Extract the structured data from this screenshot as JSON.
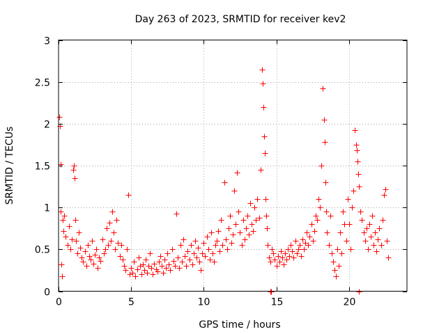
{
  "chart_data": {
    "type": "scatter",
    "title": "Day 263 of 2023, SRMTID for receiver kev2",
    "xlabel": "GPS time / hours",
    "ylabel": "SRMTID / TECUs",
    "xlim": [
      0,
      24
    ],
    "ylim": [
      0,
      3
    ],
    "grid": true,
    "marker": "+",
    "color": "#ff0000",
    "xticks": [
      0,
      5,
      10,
      15,
      20
    ],
    "xtick_labels": [
      "0",
      "5",
      "10",
      "15",
      "20"
    ],
    "yticks": [
      0,
      0.5,
      1,
      1.5,
      2,
      2.5,
      3
    ],
    "ytick_labels": [
      "0",
      "0.5",
      "1",
      "1.5",
      "2",
      "2.5",
      "3"
    ],
    "series": [
      {
        "name": "SRMTID",
        "x": [
          0.05,
          0.1,
          0.12,
          0.15,
          0.2,
          0.25,
          0.3,
          0.35,
          0.4,
          0.5,
          0.6,
          0.7,
          0.8,
          0.9,
          1.0,
          1.05,
          1.1,
          1.15,
          1.2,
          1.3,
          1.4,
          1.5,
          1.6,
          1.7,
          1.8,
          1.9,
          2.0,
          2.1,
          2.2,
          2.3,
          2.4,
          2.5,
          2.6,
          2.7,
          2.8,
          2.9,
          3.0,
          3.1,
          3.2,
          3.3,
          3.4,
          3.5,
          3.6,
          3.7,
          3.8,
          3.9,
          4.0,
          4.1,
          4.2,
          4.3,
          4.4,
          4.5,
          4.6,
          4.7,
          4.8,
          4.9,
          5.0,
          5.1,
          5.2,
          5.3,
          5.4,
          5.5,
          5.6,
          5.7,
          5.8,
          5.9,
          6.0,
          6.1,
          6.2,
          6.3,
          6.4,
          6.5,
          6.6,
          6.7,
          6.8,
          6.9,
          7.0,
          7.1,
          7.2,
          7.3,
          7.4,
          7.5,
          7.6,
          7.7,
          7.8,
          7.9,
          8.0,
          8.1,
          8.2,
          8.3,
          8.4,
          8.5,
          8.6,
          8.7,
          8.8,
          8.9,
          9.0,
          9.1,
          9.2,
          9.3,
          9.4,
          9.5,
          9.6,
          9.7,
          9.8,
          9.9,
          10.0,
          10.1,
          10.2,
          10.3,
          10.4,
          10.5,
          10.6,
          10.7,
          10.8,
          10.9,
          11.0,
          11.1,
          11.2,
          11.3,
          11.4,
          11.5,
          11.6,
          11.7,
          11.8,
          11.9,
          12.0,
          12.1,
          12.2,
          12.3,
          12.4,
          12.5,
          12.6,
          12.7,
          12.8,
          12.9,
          13.0,
          13.1,
          13.2,
          13.3,
          13.4,
          13.5,
          13.6,
          13.7,
          13.8,
          13.9,
          14.0,
          14.05,
          14.1,
          14.15,
          14.2,
          14.25,
          14.3,
          14.35,
          14.4,
          14.5,
          14.6,
          14.7,
          14.8,
          14.9,
          15.0,
          15.1,
          15.2,
          15.3,
          15.4,
          15.5,
          15.6,
          15.7,
          15.8,
          15.9,
          16.0,
          16.1,
          16.2,
          16.3,
          16.4,
          16.5,
          16.6,
          16.7,
          16.8,
          16.9,
          17.0,
          17.1,
          17.2,
          17.3,
          17.4,
          17.5,
          17.6,
          17.7,
          17.8,
          17.9,
          18.0,
          18.1,
          18.2,
          18.3,
          18.35,
          18.4,
          18.45,
          18.5,
          18.6,
          18.7,
          18.8,
          18.9,
          19.0,
          19.1,
          19.2,
          19.3,
          19.4,
          19.5,
          19.6,
          19.7,
          19.8,
          19.9,
          20.0,
          20.1,
          20.2,
          20.3,
          20.4,
          20.5,
          20.55,
          20.6,
          20.65,
          20.7,
          20.8,
          20.9,
          21.0,
          21.1,
          21.2,
          21.3,
          21.4,
          21.5,
          21.6,
          21.7,
          21.8,
          21.9,
          22.0,
          22.1,
          22.2,
          22.3,
          22.4,
          22.5,
          22.6,
          22.7
        ],
        "y": [
          2.08,
          1.97,
          1.52,
          0.95,
          0.32,
          0.18,
          0.85,
          0.72,
          0.9,
          0.65,
          0.55,
          0.78,
          0.5,
          0.62,
          1.45,
          1.5,
          1.35,
          0.85,
          0.6,
          0.45,
          0.7,
          0.52,
          0.4,
          0.35,
          0.48,
          0.3,
          0.55,
          0.42,
          0.38,
          0.6,
          0.33,
          0.44,
          0.5,
          0.28,
          0.4,
          0.36,
          0.62,
          0.45,
          0.5,
          0.75,
          0.55,
          0.82,
          0.6,
          0.95,
          0.7,
          0.5,
          0.85,
          0.58,
          0.42,
          0.55,
          0.38,
          0.3,
          0.25,
          0.5,
          1.15,
          0.2,
          0.28,
          0.22,
          0.35,
          0.18,
          0.26,
          0.4,
          0.3,
          0.2,
          0.32,
          0.25,
          0.38,
          0.22,
          0.3,
          0.45,
          0.28,
          0.2,
          0.33,
          0.26,
          0.24,
          0.35,
          0.42,
          0.3,
          0.22,
          0.38,
          0.28,
          0.45,
          0.32,
          0.25,
          0.5,
          0.36,
          0.3,
          0.93,
          0.4,
          0.28,
          0.55,
          0.35,
          0.62,
          0.42,
          0.3,
          0.48,
          0.38,
          0.55,
          0.32,
          0.45,
          0.6,
          0.4,
          0.52,
          0.35,
          0.25,
          0.45,
          0.58,
          0.42,
          0.65,
          0.5,
          0.38,
          0.7,
          0.45,
          0.35,
          0.55,
          0.6,
          0.72,
          0.48,
          0.85,
          0.55,
          1.3,
          0.62,
          0.5,
          0.75,
          0.9,
          0.58,
          0.68,
          1.2,
          0.8,
          1.42,
          0.95,
          0.7,
          0.55,
          0.85,
          0.62,
          0.75,
          0.9,
          0.68,
          1.05,
          0.8,
          0.72,
          1.0,
          0.85,
          1.1,
          0.88,
          1.45,
          2.65,
          2.48,
          2.2,
          1.85,
          1.65,
          1.1,
          0.9,
          0.75,
          0.55,
          0.4,
          0.35,
          0.5,
          0.45,
          0.38,
          0.3,
          0.42,
          0.35,
          0.48,
          0.4,
          0.32,
          0.45,
          0.38,
          0.5,
          0.42,
          0.55,
          0.48,
          0.4,
          0.6,
          0.45,
          0.5,
          0.55,
          0.42,
          0.62,
          0.5,
          0.58,
          0.7,
          0.55,
          0.65,
          0.8,
          0.6,
          0.72,
          0.9,
          0.85,
          1.1,
          1.0,
          1.5,
          2.42,
          2.05,
          1.78,
          1.3,
          0.95,
          0.7,
          0.55,
          0.9,
          0.45,
          0.35,
          0.25,
          0.18,
          0.5,
          0.3,
          0.7,
          0.45,
          0.95,
          0.8,
          0.6,
          1.1,
          0.8,
          0.5,
          1.0,
          1.2,
          1.92,
          1.75,
          1.68,
          1.55,
          1.4,
          1.25,
          0.95,
          0.85,
          0.7,
          0.6,
          0.75,
          0.5,
          0.8,
          0.65,
          0.9,
          0.55,
          0.7,
          0.48,
          0.62,
          0.75,
          0.55,
          0.85,
          1.15,
          1.22,
          0.6,
          0.4
        ],
        "extra_points": [
          [
            14.6,
            0.0
          ],
          [
            14.65,
            0.0
          ],
          [
            20.7,
            0.0
          ]
        ]
      }
    ]
  }
}
